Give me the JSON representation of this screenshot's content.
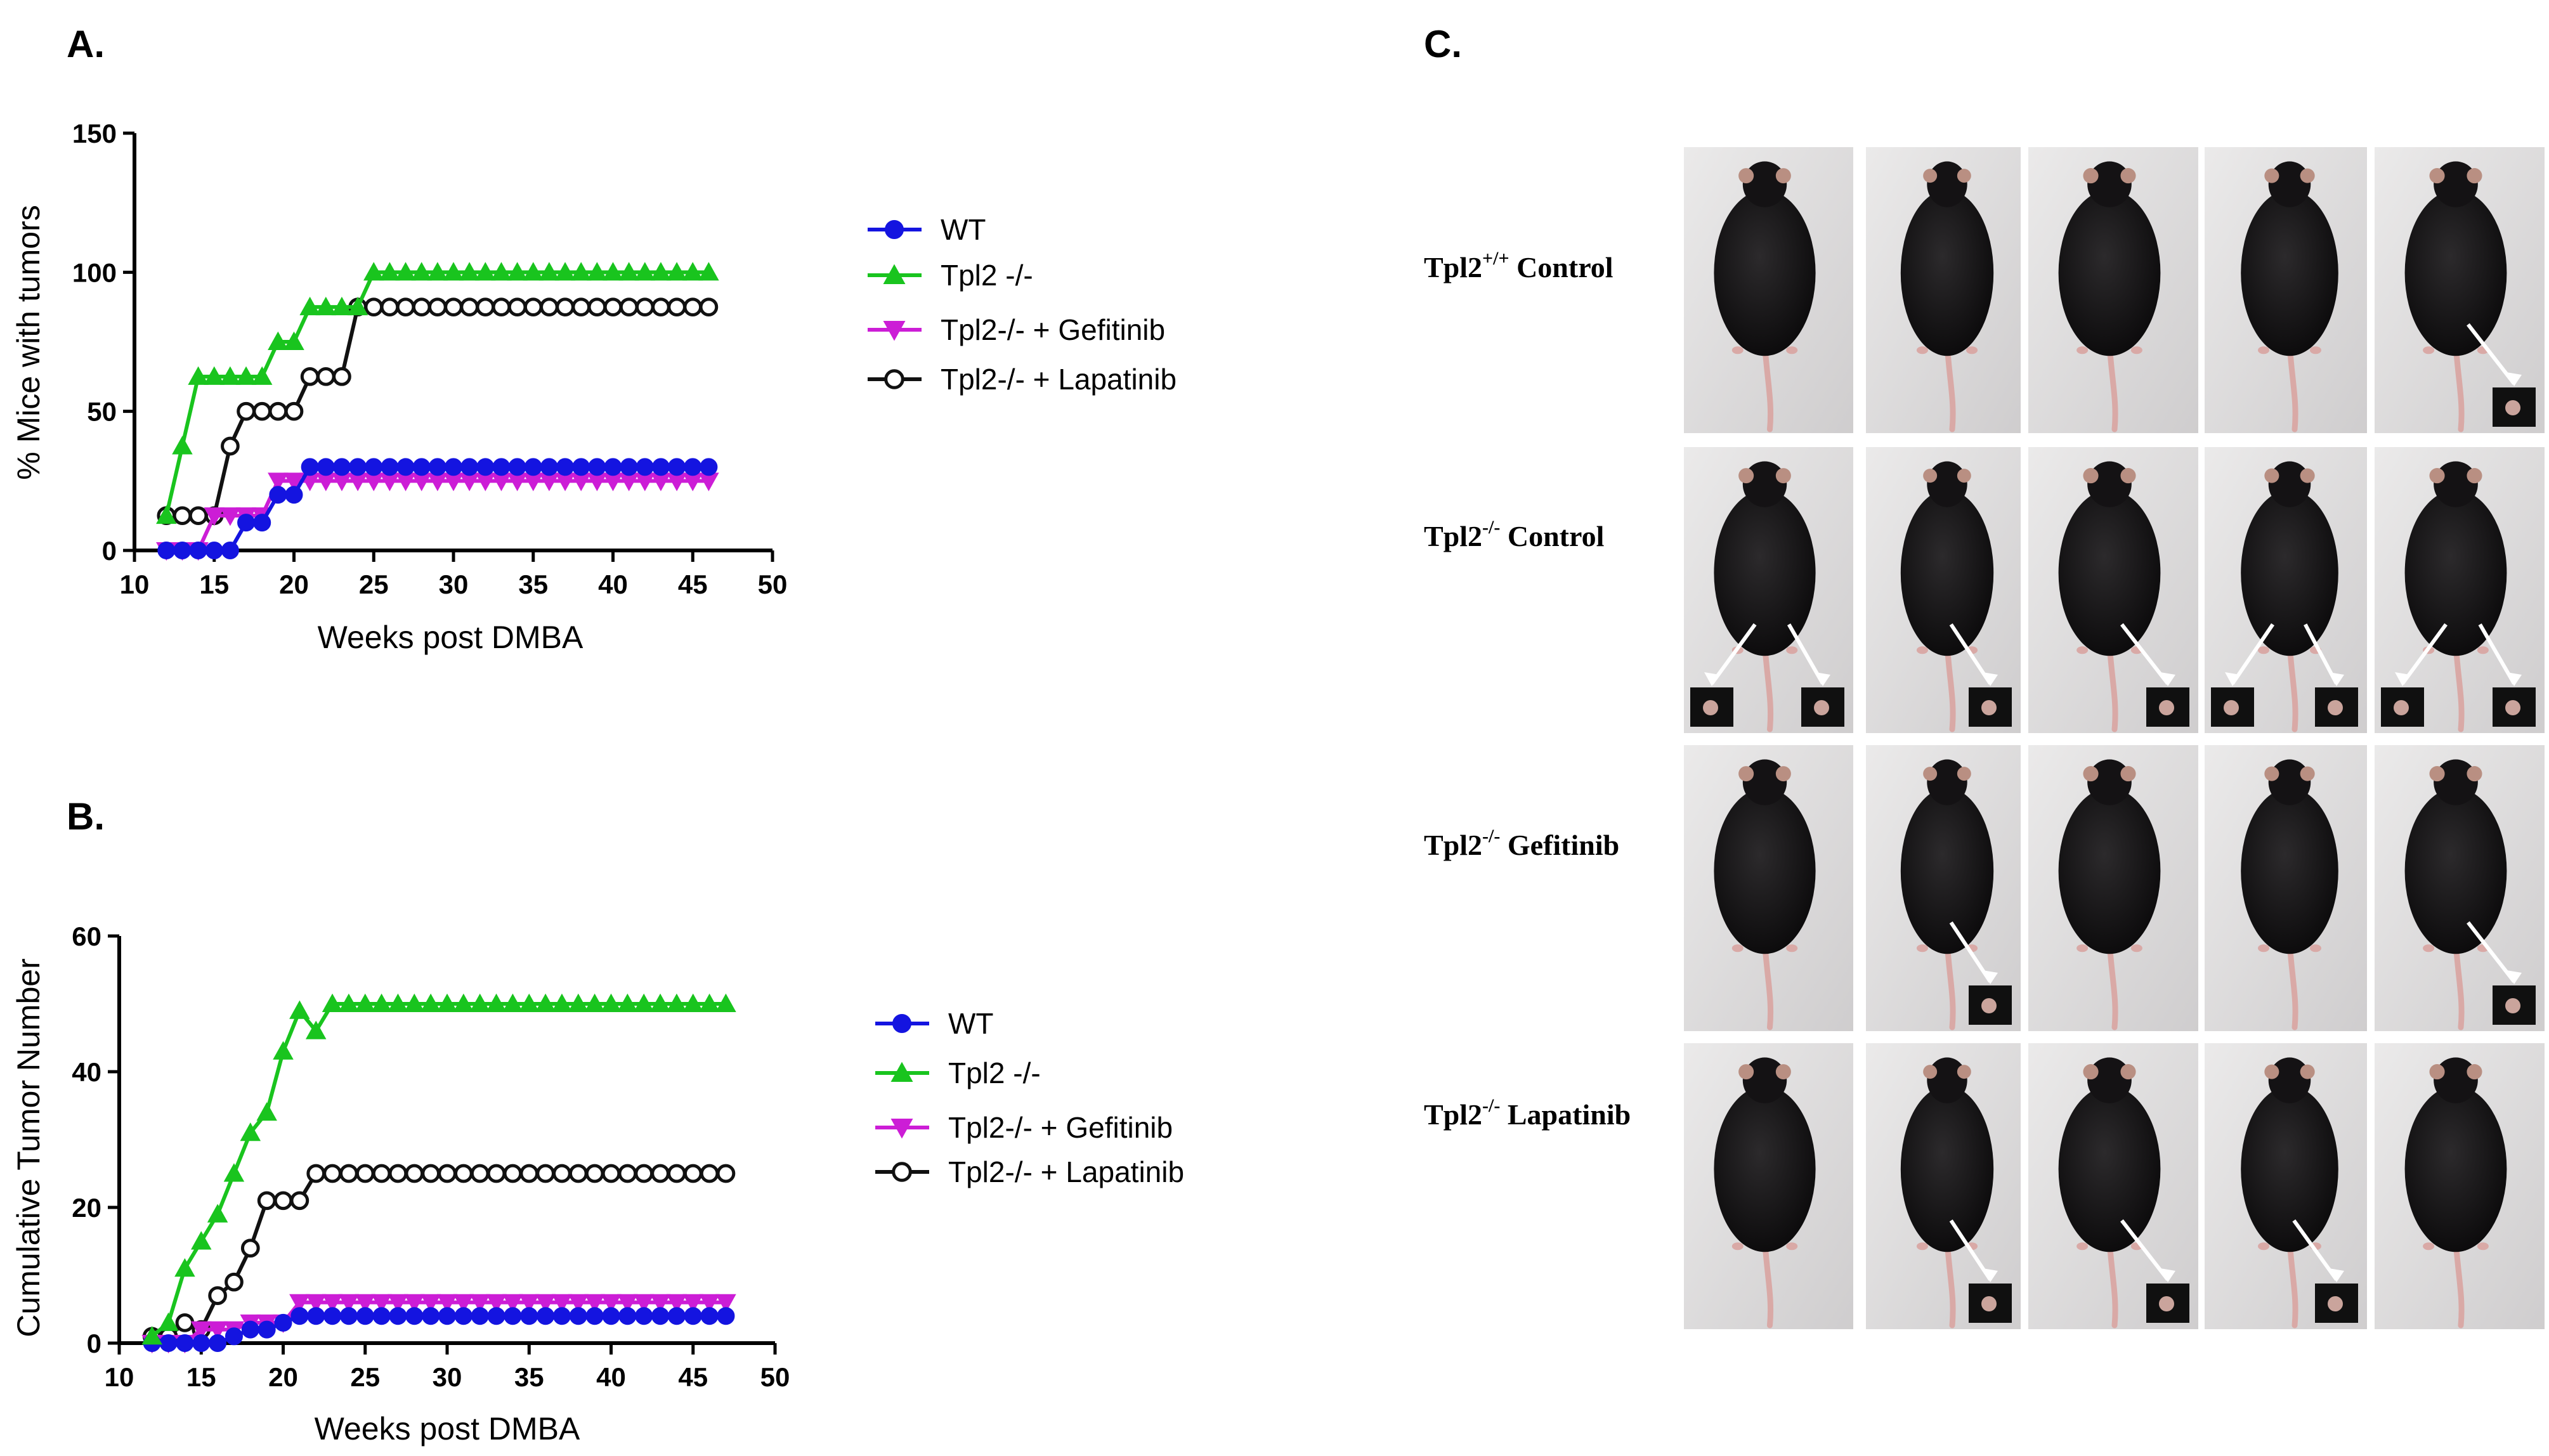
{
  "panels": {
    "a_label": "A.",
    "b_label": "B.",
    "c_label": "C."
  },
  "colors": {
    "WT": "#1414e0",
    "Tpl2 -/-": "#19c41e",
    "Tpl2-/- + Gefitinib": "#cc1dd6",
    "Tpl2-/- + Lapatinib": "#111111"
  },
  "chart_data": [
    {
      "type": "line",
      "xlabel": "Weeks post DMBA",
      "ylabel": "% Mice with tumors",
      "xlim": [
        10,
        50
      ],
      "ylim": [
        0,
        150
      ],
      "xticks": [
        10,
        15,
        20,
        25,
        30,
        35,
        40,
        45,
        50
      ],
      "yticks": [
        0,
        50,
        100,
        150
      ],
      "legend_position": "right",
      "series": [
        {
          "name": "WT",
          "marker": "circle-filled",
          "x": [
            12,
            13,
            14,
            15,
            16,
            17,
            18,
            19,
            20,
            21,
            22,
            23,
            24,
            25,
            26,
            27,
            28,
            29,
            30,
            31,
            32,
            33,
            34,
            35,
            36,
            37,
            38,
            39,
            40,
            41,
            42,
            43,
            44,
            45,
            46
          ],
          "y": [
            0,
            0,
            0,
            0,
            0,
            10,
            10,
            20,
            20,
            30,
            30,
            30,
            30,
            30,
            30,
            30,
            30,
            30,
            30,
            30,
            30,
            30,
            30,
            30,
            30,
            30,
            30,
            30,
            30,
            30,
            30,
            30,
            30,
            30,
            30
          ]
        },
        {
          "name": "Tpl2 -/-",
          "marker": "triangle-up-filled",
          "x": [
            12,
            13,
            14,
            15,
            16,
            17,
            18,
            19,
            20,
            21,
            22,
            23,
            24,
            25,
            26,
            27,
            28,
            29,
            30,
            31,
            32,
            33,
            34,
            35,
            36,
            37,
            38,
            39,
            40,
            41,
            42,
            43,
            44,
            45,
            46
          ],
          "y": [
            12.5,
            37.5,
            62.5,
            62.5,
            62.5,
            62.5,
            62.5,
            75,
            75,
            87.5,
            87.5,
            87.5,
            87.5,
            100,
            100,
            100,
            100,
            100,
            100,
            100,
            100,
            100,
            100,
            100,
            100,
            100,
            100,
            100,
            100,
            100,
            100,
            100,
            100,
            100,
            100
          ]
        },
        {
          "name": "Tpl2-/- + Gefitinib",
          "marker": "triangle-down-filled",
          "x": [
            12,
            13,
            14,
            15,
            16,
            17,
            18,
            19,
            20,
            21,
            22,
            23,
            24,
            25,
            26,
            27,
            28,
            29,
            30,
            31,
            32,
            33,
            34,
            35,
            36,
            37,
            38,
            39,
            40,
            41,
            42,
            43,
            44,
            45,
            46
          ],
          "y": [
            0,
            0,
            0,
            12.5,
            12.5,
            12.5,
            12.5,
            25,
            25,
            25,
            25,
            25,
            25,
            25,
            25,
            25,
            25,
            25,
            25,
            25,
            25,
            25,
            25,
            25,
            25,
            25,
            25,
            25,
            25,
            25,
            25,
            25,
            25,
            25,
            25
          ]
        },
        {
          "name": "Tpl2-/- + Lapatinib",
          "marker": "circle-open",
          "x": [
            12,
            13,
            14,
            15,
            16,
            17,
            18,
            19,
            20,
            21,
            22,
            23,
            24,
            25,
            26,
            27,
            28,
            29,
            30,
            31,
            32,
            33,
            34,
            35,
            36,
            37,
            38,
            39,
            40,
            41,
            42,
            43,
            44,
            45,
            46
          ],
          "y": [
            12.5,
            12.5,
            12.5,
            12.5,
            37.5,
            50,
            50,
            50,
            50,
            62.5,
            62.5,
            62.5,
            87.5,
            87.5,
            87.5,
            87.5,
            87.5,
            87.5,
            87.5,
            87.5,
            87.5,
            87.5,
            87.5,
            87.5,
            87.5,
            87.5,
            87.5,
            87.5,
            87.5,
            87.5,
            87.5,
            87.5,
            87.5,
            87.5,
            87.5
          ]
        }
      ]
    },
    {
      "type": "line",
      "xlabel": "Weeks post DMBA",
      "ylabel": "Cumulative Tumor Number",
      "xlim": [
        10,
        50
      ],
      "ylim": [
        0,
        60
      ],
      "xticks": [
        10,
        15,
        20,
        25,
        30,
        35,
        40,
        45,
        50
      ],
      "yticks": [
        0,
        20,
        40,
        60
      ],
      "legend_position": "right",
      "series": [
        {
          "name": "WT",
          "marker": "circle-filled",
          "x": [
            12,
            13,
            14,
            15,
            16,
            17,
            18,
            19,
            20,
            21,
            22,
            23,
            24,
            25,
            26,
            27,
            28,
            29,
            30,
            31,
            32,
            33,
            34,
            35,
            36,
            37,
            38,
            39,
            40,
            41,
            42,
            43,
            44,
            45,
            46,
            47
          ],
          "y": [
            0,
            0,
            0,
            0,
            0,
            1,
            2,
            2,
            3,
            4,
            4,
            4,
            4,
            4,
            4,
            4,
            4,
            4,
            4,
            4,
            4,
            4,
            4,
            4,
            4,
            4,
            4,
            4,
            4,
            4,
            4,
            4,
            4,
            4,
            4,
            4
          ]
        },
        {
          "name": "Tpl2 -/-",
          "marker": "triangle-up-filled",
          "x": [
            12,
            13,
            14,
            15,
            16,
            17,
            18,
            19,
            20,
            21,
            22,
            23,
            24,
            25,
            26,
            27,
            28,
            29,
            30,
            31,
            32,
            33,
            34,
            35,
            36,
            37,
            38,
            39,
            40,
            41,
            42,
            43,
            44,
            45,
            46,
            47
          ],
          "y": [
            1,
            3,
            11,
            15,
            19,
            25,
            31,
            34,
            43,
            49,
            46,
            50,
            50,
            50,
            50,
            50,
            50,
            50,
            50,
            50,
            50,
            50,
            50,
            50,
            50,
            50,
            50,
            50,
            50,
            50,
            50,
            50,
            50,
            50,
            50,
            50
          ]
        },
        {
          "name": "Tpl2-/- + Gefitinib",
          "marker": "triangle-down-filled",
          "x": [
            12,
            13,
            14,
            15,
            16,
            17,
            18,
            19,
            20,
            21,
            22,
            23,
            24,
            25,
            26,
            27,
            28,
            29,
            30,
            31,
            32,
            33,
            34,
            35,
            36,
            37,
            38,
            39,
            40,
            41,
            42,
            43,
            44,
            45,
            46,
            47
          ],
          "y": [
            0,
            0,
            0,
            2,
            2,
            2,
            3,
            3,
            3,
            6,
            6,
            6,
            6,
            6,
            6,
            6,
            6,
            6,
            6,
            6,
            6,
            6,
            6,
            6,
            6,
            6,
            6,
            6,
            6,
            6,
            6,
            6,
            6,
            6,
            6,
            6
          ]
        },
        {
          "name": "Tpl2-/- + Lapatinib",
          "marker": "circle-open",
          "x": [
            12,
            13,
            14,
            15,
            16,
            17,
            18,
            19,
            20,
            21,
            22,
            23,
            24,
            25,
            26,
            27,
            28,
            29,
            30,
            31,
            32,
            33,
            34,
            35,
            36,
            37,
            38,
            39,
            40,
            41,
            42,
            43,
            44,
            45,
            46,
            47
          ],
          "y": [
            1,
            1,
            3,
            2,
            7,
            9,
            14,
            21,
            21,
            21,
            25,
            25,
            25,
            25,
            25,
            25,
            25,
            25,
            25,
            25,
            25,
            25,
            25,
            25,
            25,
            25,
            25,
            25,
            25,
            25,
            25,
            25,
            25,
            25,
            25,
            25
          ]
        }
      ]
    }
  ],
  "photo_grid": {
    "rows": [
      {
        "label_main": "Tpl2",
        "label_sup": "+/+",
        "label_rest": " Control",
        "arrows": [
          [
            4,
            1
          ]
        ]
      },
      {
        "label_main": "Tpl2",
        "label_sup": "-/-",
        "label_rest": " Control",
        "arrows": [
          [
            0,
            2
          ],
          [
            1,
            1
          ],
          [
            2,
            1
          ],
          [
            3,
            2
          ],
          [
            4,
            2
          ]
        ]
      },
      {
        "label_main": "Tpl2",
        "label_sup": "-/-",
        "label_rest": " Gefitinib",
        "arrows": [
          [
            1,
            1
          ],
          [
            4,
            1
          ]
        ]
      },
      {
        "label_main": "Tpl2",
        "label_sup": "-/-",
        "label_rest": " Lapatinib",
        "arrows": [
          [
            1,
            1
          ],
          [
            2,
            1
          ],
          [
            3,
            1
          ]
        ]
      }
    ]
  }
}
